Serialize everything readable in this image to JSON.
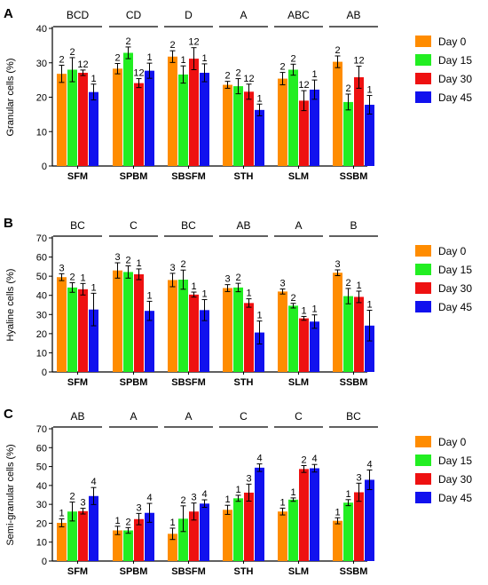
{
  "chart_data": [
    {
      "type": "bar",
      "panel_label": "A",
      "ylabel": "Granular cells (%)",
      "ylim": [
        0,
        40
      ],
      "yticks": [
        0,
        10,
        20,
        30,
        40
      ],
      "categories": [
        "SFM",
        "SPBM",
        "SBSFM",
        "STH",
        "SLM",
        "SSBM"
      ],
      "group_letters": [
        "BCD",
        "CD",
        "D",
        "A",
        "ABC",
        "AB"
      ],
      "series": [
        {
          "name": "Day 0",
          "values": [
            26.8,
            28.3,
            31.8,
            23.6,
            25.4,
            30.3
          ],
          "errors": [
            2.5,
            1.5,
            1.7,
            1.0,
            1.8,
            1.7
          ],
          "labels": [
            "2",
            "2",
            "2",
            "2",
            "2",
            "2"
          ]
        },
        {
          "name": "Day 15",
          "values": [
            28.0,
            32.9,
            26.6,
            23.2,
            28.0,
            18.6
          ],
          "errors": [
            3.5,
            1.7,
            2.5,
            2.2,
            1.6,
            2.3
          ],
          "labels": [
            "2",
            "2",
            "1",
            "2",
            "2",
            "2"
          ]
        },
        {
          "name": "Day 30",
          "values": [
            27.1,
            24.1,
            31.2,
            21.6,
            19.0,
            25.8
          ],
          "errors": [
            0.8,
            1.3,
            3.2,
            2.2,
            2.9,
            3.2
          ],
          "labels": [
            "12",
            "12",
            "12",
            "12",
            "12",
            "12"
          ]
        },
        {
          "name": "Day 45",
          "values": [
            21.5,
            27.7,
            27.1,
            16.3,
            22.2,
            17.8
          ],
          "errors": [
            2.3,
            2.2,
            2.6,
            1.7,
            2.8,
            2.7
          ],
          "labels": [
            "1",
            "1",
            "1",
            "1",
            "1",
            "1"
          ]
        }
      ],
      "legend_position": "right"
    },
    {
      "type": "bar",
      "panel_label": "B",
      "ylabel": "Hyaline cells (%)",
      "ylim": [
        0,
        70
      ],
      "yticks": [
        0,
        10,
        20,
        30,
        40,
        50,
        60,
        70
      ],
      "categories": [
        "SFM",
        "SPBM",
        "SBSFM",
        "STH",
        "SLM",
        "SSBM"
      ],
      "group_letters": [
        "BC",
        "C",
        "BC",
        "AB",
        "A",
        "B"
      ],
      "series": [
        {
          "name": "Day 0",
          "values": [
            49.5,
            53.0,
            48.0,
            43.8,
            42.0,
            51.8
          ],
          "errors": [
            1.8,
            4.0,
            3.5,
            1.8,
            1.3,
            1.5
          ],
          "labels": [
            "3",
            "3",
            "3",
            "3",
            "3",
            "3"
          ]
        },
        {
          "name": "Day 15",
          "values": [
            44.1,
            52.2,
            48.2,
            44.1,
            34.6,
            39.6
          ],
          "errors": [
            2.5,
            3.2,
            5.0,
            2.2,
            1.2,
            4.0
          ],
          "labels": [
            "2",
            "2",
            "2",
            "2",
            "2",
            "2"
          ]
        },
        {
          "name": "Day 30",
          "values": [
            43.2,
            51.0,
            40.4,
            36.0,
            28.0,
            39.2
          ],
          "errors": [
            3.0,
            2.8,
            1.3,
            2.2,
            1.0,
            3.0
          ],
          "labels": [
            "1",
            "1",
            "1",
            "1",
            "1",
            "1"
          ]
        },
        {
          "name": "Day 45",
          "values": [
            32.6,
            31.9,
            32.3,
            20.6,
            26.3,
            24.2
          ],
          "errors": [
            8.5,
            5.0,
            5.5,
            6.0,
            3.5,
            8.0
          ],
          "labels": [
            "1",
            "1",
            "1",
            "1",
            "1",
            "1"
          ]
        }
      ],
      "legend_position": "right"
    },
    {
      "type": "bar",
      "panel_label": "C",
      "ylabel": "Semi-granular cells (%)",
      "ylim": [
        0,
        70
      ],
      "yticks": [
        0,
        10,
        20,
        30,
        40,
        50,
        60,
        70
      ],
      "categories": [
        "SFM",
        "SPBM",
        "SBSFM",
        "STH",
        "SLM",
        "SSBM"
      ],
      "group_letters": [
        "AB",
        "A",
        "A",
        "C",
        "C",
        "BC"
      ],
      "series": [
        {
          "name": "Day 0",
          "values": [
            20.2,
            16.2,
            14.4,
            27.1,
            26.2,
            21.3
          ],
          "errors": [
            2.1,
            2.2,
            3.0,
            2.4,
            1.8,
            1.6
          ],
          "labels": [
            "1",
            "1",
            "1",
            "1",
            "1",
            "1"
          ]
        },
        {
          "name": "Day 15",
          "values": [
            26.2,
            16.2,
            22.4,
            33.2,
            32.5,
            30.9
          ],
          "errors": [
            5.0,
            1.5,
            6.8,
            1.6,
            0.9,
            1.6
          ],
          "labels": [
            "2",
            "2",
            "2",
            "1",
            "1",
            "1"
          ]
        },
        {
          "name": "Day 30",
          "values": [
            26.4,
            22.2,
            26.2,
            36.2,
            48.7,
            36.4
          ],
          "errors": [
            1.5,
            3.0,
            4.5,
            4.5,
            1.8,
            4.8
          ],
          "labels": [
            "3",
            "3",
            "3",
            "3",
            "2",
            "3"
          ]
        },
        {
          "name": "Day 45",
          "values": [
            34.4,
            25.5,
            30.4,
            49.4,
            49.1,
            43.0
          ],
          "errors": [
            4.5,
            5.0,
            2.0,
            2.0,
            2.0,
            5.2
          ],
          "labels": [
            "4",
            "4",
            "4",
            "4",
            "4",
            "4"
          ]
        }
      ],
      "legend_position": "right"
    }
  ],
  "colors": {
    "day0": "#FF8C00",
    "day15": "#22EE22",
    "day30": "#EE1111",
    "day45": "#1111EE",
    "axis": "#000000",
    "error_bar": "#000000"
  }
}
